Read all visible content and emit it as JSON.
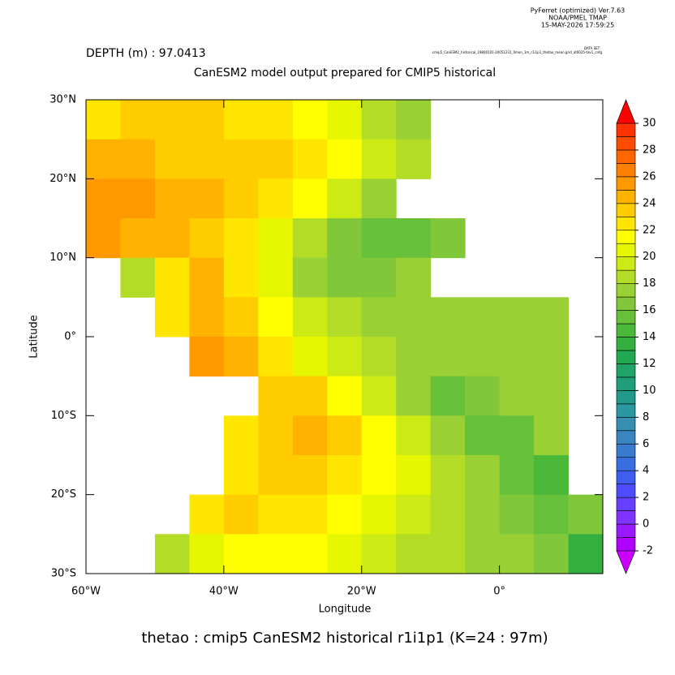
{
  "header": {
    "software": "PyFerret (optimized) Ver.7.63",
    "org": "NOAA/PMEL TMAP",
    "timestamp": "15-MAY-2026 17:59:25",
    "dataset_label": "DATA SET:",
    "dataset": "cmip5_CanESM2_historical_19800101-20051231_0mon_1m_r1i1p1_thetao_mean.grid_at0025-tav1_cnfg"
  },
  "chart_data": {
    "type": "heatmap",
    "depth_label": "DEPTH (m) : 97.0413",
    "title": "CanESM2 model output prepared for CMIP5 historical",
    "xlabel": "Longitude",
    "ylabel": "Latitude",
    "footer": "thetao : cmip5 CanESM2 historical r1i1p1   (K=24 : 97m)",
    "xlim": [
      -60,
      15
    ],
    "ylim": [
      -30,
      30
    ],
    "xticks": [
      {
        "value": -60,
        "label": "60°W"
      },
      {
        "value": -40,
        "label": "40°W"
      },
      {
        "value": -20,
        "label": "20°W"
      },
      {
        "value": 0,
        "label": "0°"
      }
    ],
    "yticks": [
      {
        "value": -30,
        "label": "30°S"
      },
      {
        "value": -20,
        "label": "20°S"
      },
      {
        "value": -10,
        "label": "10°S"
      },
      {
        "value": 0,
        "label": "0°"
      },
      {
        "value": 10,
        "label": "10°N"
      },
      {
        "value": 20,
        "label": "20°N"
      },
      {
        "value": 30,
        "label": "30°N"
      }
    ],
    "lon_bins": [
      -60,
      -55,
      -50,
      -45,
      -40,
      -35,
      -30,
      -25,
      -20,
      -15,
      -10,
      -5,
      0,
      5,
      10,
      15
    ],
    "lat_bins": [
      30,
      25,
      20,
      15,
      10,
      5,
      0,
      -5,
      -10,
      -15,
      -20,
      -25,
      -30
    ],
    "z": [
      [
        22,
        23,
        23,
        23,
        22,
        22,
        21,
        20,
        18,
        17,
        null,
        null,
        null,
        null,
        null
      ],
      [
        24,
        24,
        23,
        23,
        23,
        23,
        22,
        21,
        19,
        18,
        null,
        null,
        null,
        null,
        null
      ],
      [
        25,
        25,
        24,
        24,
        23,
        22,
        21,
        19,
        17,
        null,
        null,
        null,
        null,
        null,
        null
      ],
      [
        25,
        24,
        24,
        23,
        22,
        20,
        18,
        16,
        15,
        15,
        16,
        null,
        null,
        null,
        null
      ],
      [
        null,
        18,
        22,
        24,
        22,
        20,
        17,
        16,
        16,
        17,
        null,
        null,
        null,
        null,
        null
      ],
      [
        null,
        null,
        22,
        24,
        23,
        21,
        19,
        18,
        17,
        17,
        17,
        17,
        17,
        17,
        null
      ],
      [
        null,
        null,
        null,
        25,
        24,
        22,
        20,
        19,
        18,
        17,
        17,
        17,
        17,
        17,
        null
      ],
      [
        null,
        null,
        null,
        null,
        null,
        23,
        23,
        21,
        19,
        17,
        15,
        16,
        17,
        17,
        null
      ],
      [
        null,
        null,
        null,
        null,
        22,
        23,
        24,
        23,
        21,
        19,
        17,
        15,
        15,
        17,
        null
      ],
      [
        null,
        null,
        null,
        null,
        22,
        23,
        23,
        22,
        21,
        20,
        18,
        17,
        15,
        14,
        null
      ],
      [
        null,
        null,
        null,
        22,
        23,
        22,
        22,
        21,
        20,
        19,
        18,
        17,
        16,
        15,
        16
      ],
      [
        null,
        null,
        18,
        20,
        21,
        21,
        21,
        20,
        19,
        18,
        18,
        17,
        17,
        16,
        13
      ]
    ],
    "levels": [
      -2,
      -1,
      0,
      1,
      2,
      3,
      4,
      5,
      6,
      7,
      8,
      9,
      10,
      11,
      12,
      13,
      14,
      15,
      16,
      17,
      18,
      19,
      20,
      21,
      22,
      23,
      24,
      25,
      26,
      27,
      28,
      29,
      30
    ],
    "colors": [
      "#cc00ff",
      "#b000ff",
      "#9a1aff",
      "#7f33ff",
      "#6640ff",
      "#4d4dff",
      "#3f5ef0",
      "#3a6ee0",
      "#3a7bd0",
      "#3a85bf",
      "#3790b0",
      "#2a98a0",
      "#219a8c",
      "#1f9e7a",
      "#1fa366",
      "#22a850",
      "#33b040",
      "#4cb83a",
      "#66c03a",
      "#80c83a",
      "#99d033",
      "#b3dc26",
      "#ccea14",
      "#e6f500",
      "#ffff00",
      "#ffe600",
      "#ffcc00",
      "#ffb300",
      "#ff9900",
      "#ff8000",
      "#ff6600",
      "#ff4d00",
      "#ff3300",
      "#ff0000"
    ],
    "colorbar_ticks": [
      -2,
      0,
      2,
      4,
      6,
      8,
      10,
      12,
      14,
      16,
      18,
      20,
      22,
      24,
      26,
      28,
      30
    ]
  }
}
